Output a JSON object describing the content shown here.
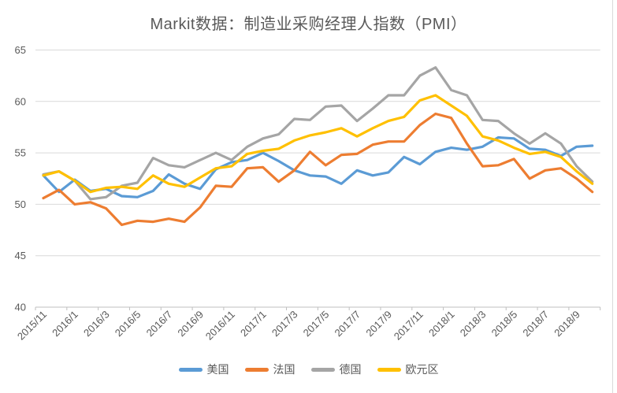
{
  "chart": {
    "title": "Markit数据：制造业采购经理人指数（PMI）"
  },
  "chart_data": {
    "type": "line",
    "title": "Markit数据：制造业采购经理人指数（PMI）",
    "categories": [
      "2015/11",
      "2015/12",
      "2016/1",
      "2016/2",
      "2016/3",
      "2016/4",
      "2016/5",
      "2016/6",
      "2016/7",
      "2016/8",
      "2016/9",
      "2016/10",
      "2016/11",
      "2016/12",
      "2017/1",
      "2017/2",
      "2017/3",
      "2017/4",
      "2017/5",
      "2017/6",
      "2017/7",
      "2017/8",
      "2017/9",
      "2017/10",
      "2017/11",
      "2017/12",
      "2018/1",
      "2018/2",
      "2018/3",
      "2018/4",
      "2018/5",
      "2018/6",
      "2018/7",
      "2018/8",
      "2018/9",
      "2018/10"
    ],
    "x_tick_label_interval": 2,
    "x_tick_labels": [
      "2015/11",
      "2016/1",
      "2016/3",
      "2016/5",
      "2016/7",
      "2016/9",
      "2016/11",
      "2017/1",
      "2017/3",
      "2017/5",
      "2017/7",
      "2017/9",
      "2017/11",
      "2018/1",
      "2018/3",
      "2018/5",
      "2018/7",
      "2018/9"
    ],
    "series": [
      {
        "name": "美国",
        "color": "#5B9BD5",
        "values": [
          52.8,
          51.2,
          52.4,
          51.3,
          51.5,
          50.8,
          50.7,
          51.3,
          52.9,
          52.0,
          51.5,
          53.4,
          54.1,
          54.3,
          55.0,
          54.2,
          53.3,
          52.8,
          52.7,
          52.0,
          53.3,
          52.8,
          53.1,
          54.6,
          53.9,
          55.1,
          55.5,
          55.3,
          55.6,
          56.5,
          56.4,
          55.4,
          55.3,
          54.7,
          55.6,
          55.7
        ]
      },
      {
        "name": "法国",
        "color": "#ED7D31",
        "values": [
          50.6,
          51.4,
          50.0,
          50.2,
          49.6,
          48.0,
          48.4,
          48.3,
          48.6,
          48.3,
          49.7,
          51.8,
          51.7,
          53.5,
          53.6,
          52.2,
          53.3,
          55.1,
          53.8,
          54.8,
          54.9,
          55.8,
          56.1,
          56.1,
          57.7,
          58.8,
          58.4,
          55.9,
          53.7,
          53.8,
          54.4,
          52.5,
          53.3,
          53.5,
          52.5,
          51.2
        ]
      },
      {
        "name": "德国",
        "color": "#A5A5A5",
        "values": [
          52.9,
          53.2,
          52.3,
          50.5,
          50.7,
          51.8,
          52.1,
          54.5,
          53.8,
          53.6,
          54.3,
          55.0,
          54.3,
          55.6,
          56.4,
          56.8,
          58.3,
          58.2,
          59.5,
          59.6,
          58.1,
          59.3,
          60.6,
          60.6,
          62.5,
          63.3,
          61.1,
          60.6,
          58.2,
          58.1,
          56.9,
          55.9,
          56.9,
          55.9,
          53.7,
          52.2
        ]
      },
      {
        "name": "欧元区",
        "color": "#FFC000",
        "values": [
          52.8,
          53.2,
          52.3,
          51.2,
          51.6,
          51.7,
          51.5,
          52.8,
          52.0,
          51.7,
          52.6,
          53.5,
          53.7,
          54.9,
          55.2,
          55.4,
          56.2,
          56.7,
          57.0,
          57.4,
          56.6,
          57.4,
          58.1,
          58.5,
          60.1,
          60.6,
          59.6,
          58.6,
          56.6,
          56.2,
          55.5,
          54.9,
          55.1,
          54.6,
          53.2,
          52.0
        ]
      }
    ],
    "ylim": [
      40,
      65
    ],
    "y_ticks": [
      40,
      45,
      50,
      55,
      60,
      65
    ],
    "grid": true,
    "legend_position": "bottom",
    "colors": {
      "gridline": "#D9D9D9",
      "axis": "#BFBFBF",
      "text": "#595959",
      "border": "#D9D9D9"
    }
  }
}
